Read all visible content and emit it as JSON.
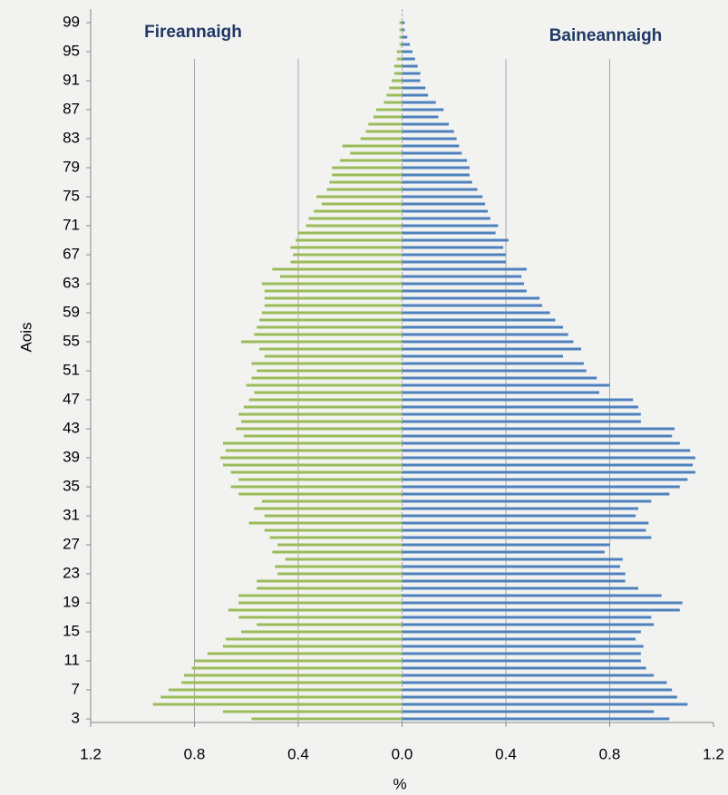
{
  "chart_data": {
    "type": "pyramid",
    "y_label": "Aois",
    "x_label": "%",
    "categories": [
      3,
      null,
      null,
      null,
      7,
      null,
      null,
      null,
      11,
      null,
      null,
      null,
      15,
      null,
      null,
      null,
      19,
      null,
      null,
      null,
      23,
      null,
      null,
      null,
      27,
      null,
      null,
      null,
      31,
      null,
      null,
      null,
      35,
      null,
      null,
      null,
      39,
      null,
      null,
      null,
      43,
      null,
      null,
      null,
      47,
      null,
      null,
      null,
      51,
      null,
      null,
      null,
      55,
      null,
      null,
      null,
      59,
      null,
      null,
      null,
      63,
      null,
      null,
      null,
      67,
      null,
      null,
      null,
      71,
      null,
      null,
      null,
      75,
      null,
      null,
      null,
      79,
      null,
      null,
      null,
      83,
      null,
      null,
      null,
      87,
      null,
      null,
      null,
      91,
      null,
      null,
      null,
      95,
      null,
      null,
      null,
      99
    ],
    "series": [
      {
        "name": "Fireannaigh",
        "color": "#9bbb59",
        "values": [
          0.58,
          0.69,
          0.96,
          0.93,
          0.9,
          0.85,
          0.84,
          0.81,
          0.8,
          0.75,
          0.69,
          0.68,
          0.62,
          0.56,
          0.63,
          0.67,
          0.63,
          0.63,
          0.56,
          0.56,
          0.48,
          0.49,
          0.45,
          0.5,
          0.48,
          0.51,
          0.53,
          0.59,
          0.53,
          0.57,
          0.54,
          0.63,
          0.66,
          0.63,
          0.66,
          0.69,
          0.7,
          0.68,
          0.69,
          0.61,
          0.64,
          0.62,
          0.63,
          0.61,
          0.59,
          0.57,
          0.6,
          0.58,
          0.56,
          0.58,
          0.53,
          0.55,
          0.62,
          0.57,
          0.56,
          0.55,
          0.54,
          0.53,
          0.53,
          0.53,
          0.54,
          0.47,
          0.5,
          0.43,
          0.42,
          0.43,
          0.41,
          0.4,
          0.37,
          0.36,
          0.34,
          0.31,
          0.33,
          0.29,
          0.28,
          0.27,
          0.27,
          0.24,
          0.2,
          0.23,
          0.16,
          0.14,
          0.13,
          0.11,
          0.1,
          0.07,
          0.06,
          0.05,
          0.04,
          0.03,
          0.03,
          0.02,
          0.02,
          0.01,
          0.01,
          0.01,
          0.01
        ]
      },
      {
        "name": "Baineannaigh",
        "color": "#4f81bd",
        "values": [
          1.03,
          0.97,
          1.1,
          1.06,
          1.04,
          1.02,
          0.97,
          0.94,
          0.92,
          0.92,
          0.93,
          0.9,
          0.92,
          0.97,
          0.96,
          1.07,
          1.08,
          1.0,
          0.91,
          0.86,
          0.86,
          0.84,
          0.85,
          0.78,
          0.8,
          0.96,
          0.94,
          0.95,
          0.9,
          0.91,
          0.96,
          1.03,
          1.07,
          1.1,
          1.13,
          1.12,
          1.13,
          1.11,
          1.07,
          1.04,
          1.05,
          0.92,
          0.92,
          0.91,
          0.89,
          0.76,
          0.8,
          0.75,
          0.71,
          0.7,
          0.62,
          0.69,
          0.66,
          0.64,
          0.62,
          0.59,
          0.57,
          0.54,
          0.53,
          0.48,
          0.47,
          0.46,
          0.48,
          0.4,
          0.4,
          0.39,
          0.41,
          0.36,
          0.37,
          0.34,
          0.33,
          0.32,
          0.31,
          0.29,
          0.27,
          0.26,
          0.26,
          0.25,
          0.23,
          0.22,
          0.21,
          0.2,
          0.18,
          0.14,
          0.16,
          0.13,
          0.1,
          0.09,
          0.07,
          0.07,
          0.06,
          0.05,
          0.04,
          0.03,
          0.02,
          0.01,
          0.01
        ]
      }
    ],
    "xlim": [
      -1.2,
      1.2
    ],
    "xticks": [
      {
        "value": -1.2,
        "label": "1.2"
      },
      {
        "value": -0.8,
        "label": "0.8"
      },
      {
        "value": -0.4,
        "label": "0.4"
      },
      {
        "value": 0,
        "label": "0.0"
      },
      0.4,
      0.8,
      1.2
    ],
    "grid": true
  }
}
